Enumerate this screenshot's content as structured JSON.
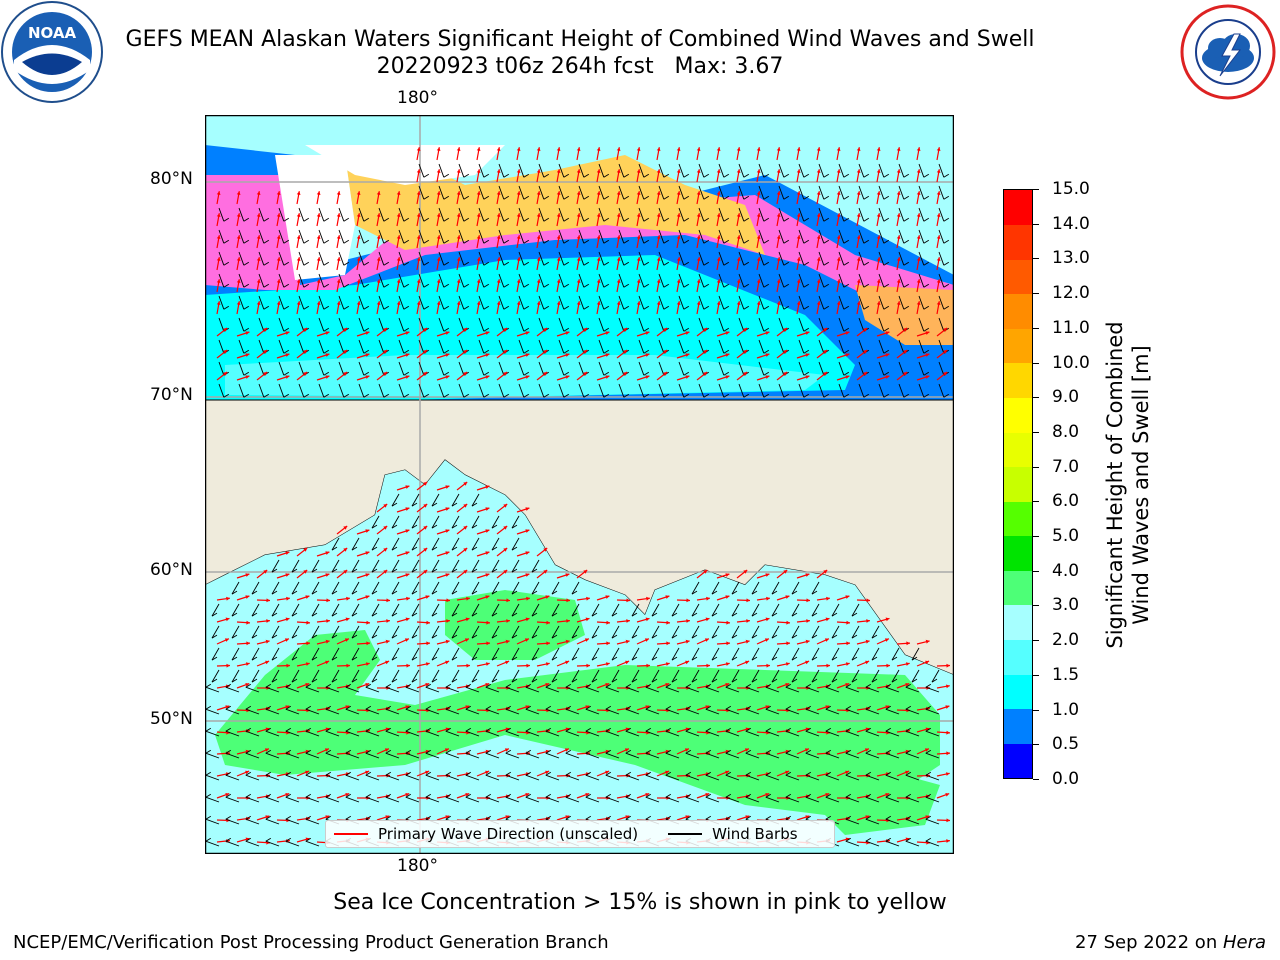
{
  "header": {
    "title_line1": "GEFS MEAN Alaskan Waters Significant Height of Combined Wind Waves and Swell",
    "title_line2": "20220923 t06z 264h fcst   Max: 3.67"
  },
  "logos": {
    "left": "noaa-logo",
    "right": "national-weather-service-logo"
  },
  "map": {
    "longitude_label_top": "180°",
    "longitude_label_bottom": "180°",
    "latitude_labels": [
      "80°N",
      "70°N",
      "60°N",
      "50°N"
    ],
    "legend": {
      "primary_wave_direction": "Primary Wave Direction (unscaled)",
      "wind_barbs": "Wind Barbs"
    },
    "colors": {
      "land": "#efebdc",
      "wave_direction_arrow": "#ff0000",
      "wind_barb": "#000000",
      "gridline": "#a9a9a9"
    }
  },
  "colorbar": {
    "label_line1": "Significant Height of Combined",
    "label_line2": "Wind Waves and Swell [m]",
    "ticks": [
      "0.0",
      "0.5",
      "1.0",
      "1.5",
      "2.0",
      "3.0",
      "4.0",
      "5.0",
      "6.0",
      "7.0",
      "8.0",
      "9.0",
      "10.0",
      "11.0",
      "12.0",
      "13.0",
      "14.0",
      "15.0"
    ],
    "colors": [
      "#0000ff",
      "#0080ff",
      "#00ffff",
      "#55ffff",
      "#a6ffff",
      "#4dff77",
      "#00e400",
      "#55ff00",
      "#c8ff00",
      "#e8ff00",
      "#ffff00",
      "#ffd700",
      "#ffa500",
      "#ff8c00",
      "#ff5a00",
      "#ff3500",
      "#ff0000"
    ]
  },
  "note": "Sea Ice Concentration > 15% is shown in pink to yellow",
  "footer": {
    "left": "NCEP/EMC/Verification Post Processing Product Generation Branch",
    "right_prefix": "27 Sep 2022 on ",
    "right_host": "Hera"
  }
}
